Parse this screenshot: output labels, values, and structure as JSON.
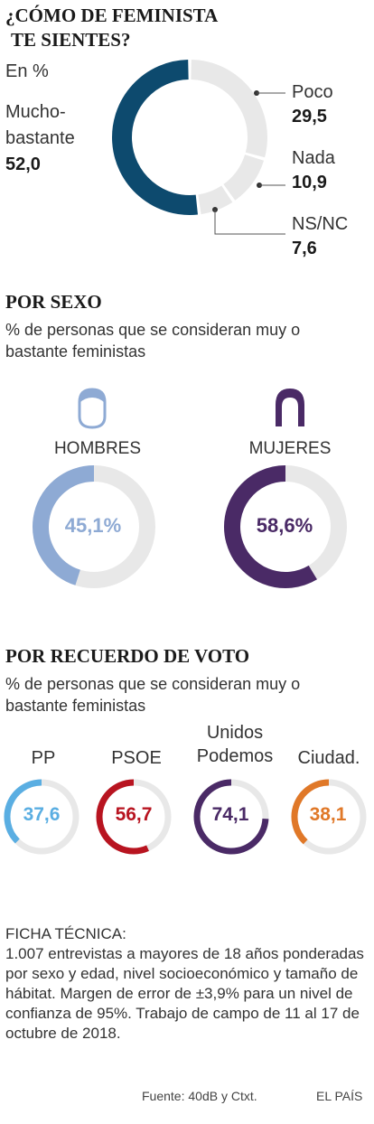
{
  "main": {
    "title_line1": "¿CÓMO DE FEMINISTA",
    "title_line2": "TE SIENTES?",
    "unit": "En %",
    "chart_data": {
      "type": "pie",
      "labels": [
        "Mucho-bastante",
        "Poco",
        "Nada",
        "NS/NC"
      ],
      "values": [
        52.0,
        29.5,
        10.9,
        7.6
      ],
      "value_labels": [
        "52,0",
        "29,5",
        "10,9",
        "7,6"
      ],
      "colors": [
        "#0d4a6e",
        "#e8e8e8",
        "#e8e8e8",
        "#e8e8e8"
      ]
    },
    "labels": {
      "mucho_line1": "Mucho-",
      "mucho_line2": "bastante",
      "mucho_value": "52,0",
      "poco": "Poco",
      "poco_value": "29,5",
      "nada": "Nada",
      "nada_value": "10,9",
      "nsnc": "NS/NC",
      "nsnc_value": "7,6"
    }
  },
  "sexo": {
    "title": "POR SEXO",
    "subtitle": "% de personas que se consideran muy o bastante feministas",
    "chart_data": {
      "type": "pie",
      "categories": [
        "HOMBRES",
        "MUJERES"
      ],
      "values": [
        45.1,
        58.6
      ],
      "value_labels": [
        "45,1%",
        "58,6%"
      ],
      "colors": [
        "#8eaad4",
        "#4a2a66"
      ]
    },
    "hombres_label": "HOMBRES",
    "mujeres_label": "MUJERES",
    "hombres_value": "45,1%",
    "mujeres_value": "58,6%",
    "icons": [
      "man-icon",
      "woman-icon"
    ]
  },
  "voto": {
    "title": "POR RECUERDO DE VOTO",
    "subtitle": "% de personas que se consideran muy o bastante feministas",
    "chart_data": {
      "type": "pie",
      "categories": [
        "PP",
        "PSOE",
        "Unidos Podemos",
        "Ciudad."
      ],
      "values": [
        37.6,
        56.7,
        74.1,
        38.1
      ],
      "value_labels": [
        "37,6",
        "56,7",
        "74,1",
        "38,1"
      ],
      "colors": [
        "#5aaee2",
        "#b81420",
        "#4a2a66",
        "#e07828"
      ]
    },
    "pp_label": "PP",
    "psoe_label": "PSOE",
    "up_line1": "Unidos",
    "up_line2": "Podemos",
    "cs_label": "Ciudad.",
    "pp_value": "37,6",
    "psoe_value": "56,7",
    "up_value": "74,1",
    "cs_value": "38,1"
  },
  "ficha": {
    "heading": "FICHA TÉCNICA:",
    "text": "1.007 entrevistas a mayores de 18 años ponderadas por sexo y edad, nivel socioeconómico y tamaño de hábitat. Margen de error de ±3,9% para un nivel de confianza de 95%. Trabajo de campo de 11 al 17 de octubre de 2018."
  },
  "footer": {
    "source": "Fuente: 40dB y Ctxt.",
    "brand": "EL PAÍS"
  },
  "track_color": "#e8e8e8"
}
